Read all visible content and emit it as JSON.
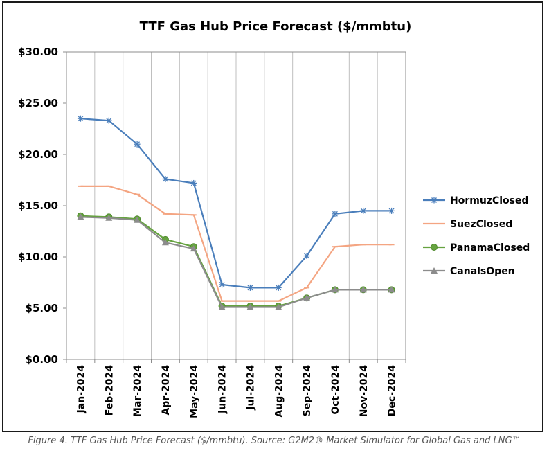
{
  "caption": "Figure 4. TTF Gas Hub Price Forecast ($/mmbtu). Source: G2M2® Market Simulator for Global Gas and LNG™",
  "chart_data": {
    "type": "line",
    "title": "TTF Gas Hub Price Forecast ($/mmbtu)",
    "xlabel": "",
    "ylabel": "",
    "ylim": [
      0,
      30
    ],
    "yticks": [
      0,
      5,
      10,
      15,
      20,
      25,
      30
    ],
    "ytick_labels": [
      "$0.00",
      "$5.00",
      "$10.00",
      "$15.00",
      "$20.00",
      "$25.00",
      "$30.00"
    ],
    "grid": "vertical",
    "legend_position": "right",
    "categories": [
      "Jan-2024",
      "Feb-2024",
      "Mar-2024",
      "Apr-2024",
      "May-2024",
      "Jun-2024",
      "Jul-2024",
      "Aug-2024",
      "Sep-2024",
      "Oct-2024",
      "Nov-2024",
      "Dec-2024"
    ],
    "series": [
      {
        "name": "HormuzClosed",
        "color": "#4a7ebb",
        "marker": "asterisk",
        "values": [
          23.5,
          23.3,
          21.0,
          17.6,
          17.2,
          7.3,
          7.0,
          7.0,
          10.1,
          14.2,
          14.5,
          14.5
        ]
      },
      {
        "name": "SuezClosed",
        "color": "#f4a582",
        "marker": "dash",
        "values": [
          16.9,
          16.9,
          16.1,
          14.2,
          14.1,
          5.7,
          5.7,
          5.7,
          7.0,
          11.0,
          11.2,
          11.2
        ]
      },
      {
        "name": "PanamaClosed",
        "color": "#66a340",
        "marker": "circle",
        "values": [
          14.0,
          13.9,
          13.7,
          11.7,
          11.0,
          5.2,
          5.2,
          5.2,
          6.0,
          6.8,
          6.8,
          6.8
        ]
      },
      {
        "name": "CanalsOpen",
        "color": "#8c8c8c",
        "marker": "triangle",
        "values": [
          13.9,
          13.8,
          13.6,
          11.4,
          10.8,
          5.1,
          5.1,
          5.1,
          6.0,
          6.8,
          6.8,
          6.8
        ]
      }
    ]
  }
}
